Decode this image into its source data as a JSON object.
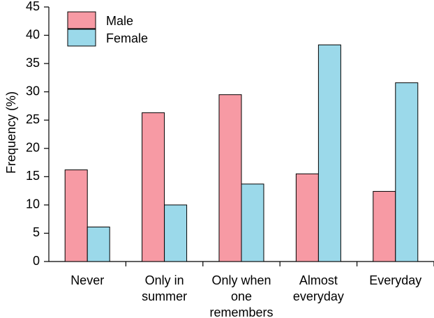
{
  "chart_data": {
    "type": "bar",
    "title": "",
    "xlabel": "",
    "ylabel": "Frequency (%)",
    "ylim": [
      0,
      45
    ],
    "yticks": [
      "0",
      "5",
      "10",
      "15",
      "20",
      "25",
      "30",
      "35",
      "40",
      "45"
    ],
    "ytick_values": [
      0,
      5,
      10,
      15,
      20,
      25,
      30,
      35,
      40,
      45
    ],
    "categories": [
      [
        "Never"
      ],
      [
        "Only in",
        "summer"
      ],
      [
        "Only when",
        "one",
        "remembers"
      ],
      [
        "Almost",
        "everyday"
      ],
      [
        "Everyday"
      ]
    ],
    "series": [
      {
        "name": "Male",
        "color": "#f79aa4",
        "values": [
          16.2,
          26.3,
          29.5,
          15.5,
          12.4
        ]
      },
      {
        "name": "Female",
        "color": "#9bd9ea",
        "values": [
          6.1,
          10.0,
          13.7,
          38.3,
          31.6
        ]
      }
    ],
    "legend_position": "top-left",
    "grid": false
  }
}
